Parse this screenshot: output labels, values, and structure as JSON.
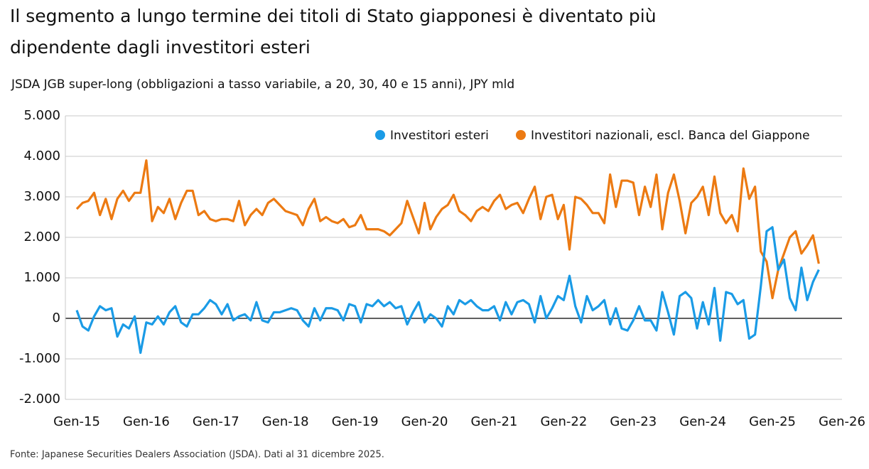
{
  "chart_data": {
    "type": "line",
    "title": "Il segmento a lungo termine dei titoli di Stato giapponesi è diventato più dipendente dagli investitori esteri",
    "subtitle": "JSDA JGB super-long (obbligazioni a tasso variabile, a 20, 30, 40 e 15 anni), JPY mld",
    "source": "Fonte: Japanese Securities Dealers Association (JSDA). Dati al 31 dicembre 2025.",
    "categories": [
      "Gen-15",
      null,
      null,
      null,
      null,
      null,
      null,
      null,
      null,
      null,
      null,
      null,
      "Gen-16",
      null,
      null,
      null,
      null,
      null,
      null,
      null,
      null,
      null,
      null,
      null,
      "Gen-17",
      null,
      null,
      null,
      null,
      null,
      null,
      null,
      null,
      null,
      null,
      null,
      "Gen-18",
      null,
      null,
      null,
      null,
      null,
      null,
      null,
      null,
      null,
      null,
      null,
      "Gen-19",
      null,
      null,
      null,
      null,
      null,
      null,
      null,
      null,
      null,
      null,
      null,
      "Gen-20",
      null,
      null,
      null,
      null,
      null,
      null,
      null,
      null,
      null,
      null,
      null,
      "Gen-21",
      null,
      null,
      null,
      null,
      null,
      null,
      null,
      null,
      null,
      null,
      null,
      "Gen-22",
      null,
      null,
      null,
      null,
      null,
      null,
      null,
      null,
      null,
      null,
      null,
      "Gen-23",
      null,
      null,
      null,
      null,
      null,
      null,
      null,
      null,
      null,
      null,
      null,
      "Gen-24",
      null,
      null,
      null,
      null,
      null,
      null,
      null,
      null,
      null,
      null,
      null,
      "Gen-25",
      null,
      null,
      null,
      null,
      null,
      null,
      null,
      null,
      null,
      null,
      null,
      "Gen-26"
    ],
    "series": [
      {
        "name": "Investitori esteri",
        "color": "#1a9be6",
        "values": [
          200,
          -200,
          -300,
          50,
          300,
          200,
          250,
          -450,
          -150,
          -250,
          50,
          -850,
          -100,
          -150,
          50,
          -150,
          150,
          300,
          -100,
          -200,
          100,
          100,
          250,
          450,
          350,
          100,
          350,
          -50,
          50,
          100,
          -50,
          400,
          -50,
          -100,
          150,
          150,
          200,
          250,
          200,
          -50,
          -200,
          250,
          -50,
          250,
          250,
          200,
          -50,
          350,
          300,
          -100,
          350,
          300,
          450,
          300,
          400,
          250,
          300,
          -150,
          150,
          400,
          -100,
          100,
          0,
          -200,
          300,
          100,
          450,
          350,
          450,
          300,
          200,
          200,
          300,
          -50,
          400,
          100,
          400,
          450,
          350,
          -100,
          550,
          0,
          250,
          550,
          450,
          1050,
          300,
          -100,
          550,
          200,
          300,
          450,
          -150,
          250,
          -250,
          -300,
          -50,
          300,
          -50,
          -50,
          -300,
          650,
          150,
          -400,
          550,
          650,
          500,
          -250,
          400,
          -150,
          750,
          -550,
          650,
          600,
          350,
          450,
          -500,
          -400,
          800,
          2150,
          2250,
          1200,
          1450,
          500,
          200,
          1250,
          450,
          900,
          1200,
          null,
          null,
          null,
          null
        ]
      },
      {
        "name": "Investitori nazionali, escl. Banca del Giappone",
        "color": "#ec7a12",
        "values": [
          2700,
          2850,
          2900,
          3100,
          2550,
          2950,
          2450,
          2950,
          3150,
          2900,
          3100,
          3100,
          3900,
          2400,
          2750,
          2600,
          2950,
          2450,
          2850,
          3150,
          3150,
          2550,
          2650,
          2450,
          2400,
          2450,
          2450,
          2400,
          2900,
          2300,
          2550,
          2700,
          2550,
          2850,
          2950,
          2800,
          2650,
          2600,
          2550,
          2300,
          2700,
          2950,
          2400,
          2500,
          2400,
          2350,
          2450,
          2250,
          2300,
          2550,
          2200,
          2200,
          2200,
          2150,
          2050,
          2200,
          2350,
          2900,
          2500,
          2100,
          2850,
          2200,
          2500,
          2700,
          2800,
          3050,
          2650,
          2550,
          2400,
          2650,
          2750,
          2650,
          2900,
          3050,
          2700,
          2800,
          2850,
          2600,
          2950,
          3250,
          2450,
          3000,
          3050,
          2450,
          2800,
          1700,
          3000,
          2950,
          2800,
          2600,
          2600,
          2350,
          3550,
          2750,
          3400,
          3400,
          3350,
          2550,
          3250,
          2750,
          3550,
          2200,
          3100,
          3550,
          2900,
          2100,
          2850,
          3000,
          3250,
          2550,
          3500,
          2600,
          2350,
          2550,
          2150,
          3700,
          2950,
          3250,
          1650,
          1400,
          500,
          1200,
          1600,
          2000,
          2150,
          1600,
          1800,
          2050,
          1350,
          null,
          null,
          null,
          null
        ]
      }
    ],
    "ylim": [
      -2000,
      5000
    ],
    "yticks": [
      {
        "value": -2000,
        "label": "-2.000"
      },
      {
        "value": -1000,
        "label": "-1.000"
      },
      0,
      {
        "value": 1000,
        "label": "1.000"
      },
      {
        "value": 2000,
        "label": "2.000"
      },
      {
        "value": 3000,
        "label": "3.000"
      },
      {
        "value": 4000,
        "label": "4.000"
      },
      {
        "value": 5000,
        "label": "5.000"
      }
    ],
    "grid": true
  }
}
